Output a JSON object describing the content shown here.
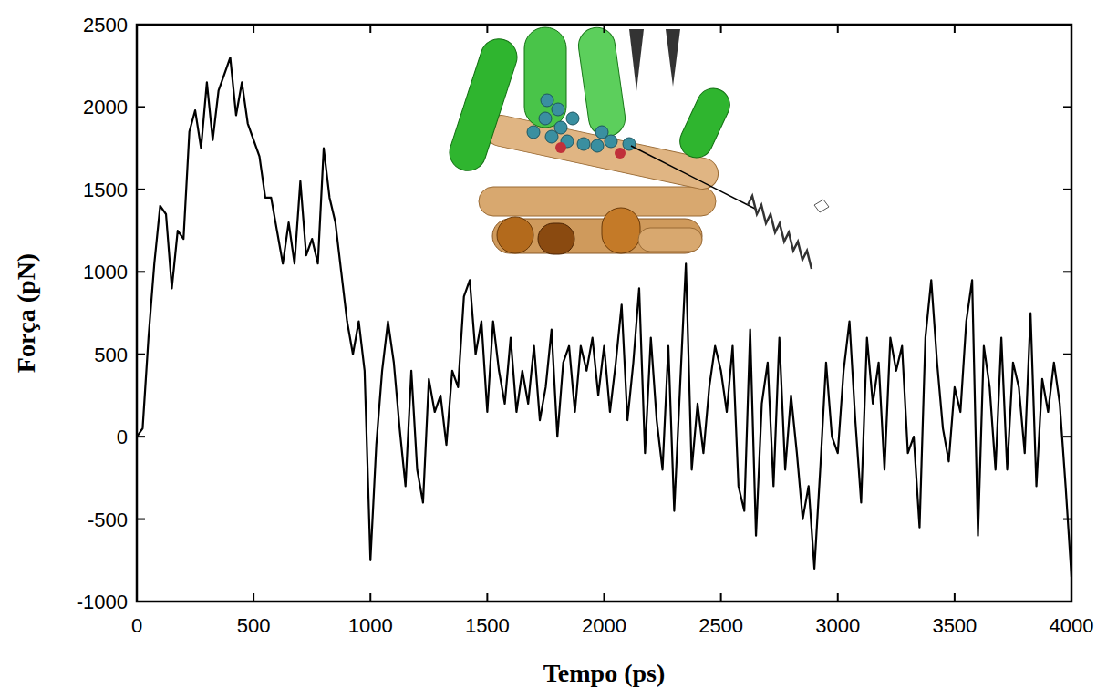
{
  "chart_data": {
    "type": "line",
    "x_label": "Tempo (ps)",
    "y_label": "Força (pN)",
    "color": "#000000",
    "xlim": [
      0,
      4000
    ],
    "ylim": [
      -1000,
      2500
    ],
    "xticks": [
      0,
      500,
      1000,
      1500,
      2000,
      2500,
      3000,
      3500,
      4000
    ],
    "yticks": [
      -1000,
      -500,
      0,
      500,
      1000,
      1500,
      2000,
      2500
    ],
    "grid": false,
    "x": [
      0,
      25,
      50,
      75,
      100,
      125,
      150,
      175,
      200,
      225,
      250,
      275,
      300,
      325,
      350,
      375,
      400,
      425,
      450,
      475,
      500,
      525,
      550,
      575,
      600,
      625,
      650,
      675,
      700,
      725,
      750,
      775,
      800,
      825,
      850,
      875,
      900,
      925,
      950,
      975,
      1000,
      1025,
      1050,
      1075,
      1100,
      1125,
      1150,
      1175,
      1200,
      1225,
      1250,
      1275,
      1300,
      1325,
      1350,
      1375,
      1400,
      1425,
      1450,
      1475,
      1500,
      1525,
      1550,
      1575,
      1600,
      1625,
      1650,
      1675,
      1700,
      1725,
      1750,
      1775,
      1800,
      1825,
      1850,
      1875,
      1900,
      1925,
      1950,
      1975,
      2000,
      2025,
      2050,
      2075,
      2100,
      2125,
      2150,
      2175,
      2200,
      2225,
      2250,
      2275,
      2300,
      2325,
      2350,
      2375,
      2400,
      2425,
      2450,
      2475,
      2500,
      2525,
      2550,
      2575,
      2600,
      2625,
      2650,
      2675,
      2700,
      2725,
      2750,
      2775,
      2800,
      2825,
      2850,
      2875,
      2900,
      2925,
      2950,
      2975,
      3000,
      3025,
      3050,
      3075,
      3100,
      3125,
      3150,
      3175,
      3200,
      3225,
      3250,
      3275,
      3300,
      3325,
      3350,
      3375,
      3400,
      3425,
      3450,
      3475,
      3500,
      3525,
      3550,
      3575,
      3600,
      3625,
      3650,
      3675,
      3700,
      3725,
      3750,
      3775,
      3800,
      3825,
      3850,
      3875,
      3900,
      3925,
      3950,
      3975,
      4000
    ],
    "values": [
      0,
      50,
      600,
      1050,
      1400,
      1350,
      900,
      1250,
      1200,
      1850,
      1980,
      1750,
      2150,
      1800,
      2100,
      2200,
      2300,
      1950,
      2150,
      1900,
      1800,
      1700,
      1450,
      1450,
      1250,
      1050,
      1300,
      1050,
      1550,
      1100,
      1200,
      1050,
      1750,
      1450,
      1300,
      1000,
      700,
      500,
      700,
      400,
      -750,
      -50,
      400,
      700,
      450,
      50,
      -300,
      400,
      -200,
      -400,
      350,
      150,
      250,
      -50,
      400,
      300,
      850,
      950,
      500,
      700,
      150,
      700,
      400,
      200,
      600,
      150,
      400,
      200,
      550,
      100,
      300,
      650,
      0,
      450,
      550,
      150,
      550,
      400,
      600,
      250,
      550,
      150,
      450,
      800,
      100,
      450,
      900,
      -100,
      600,
      100,
      -200,
      550,
      -450,
      300,
      1050,
      -200,
      200,
      -100,
      300,
      550,
      400,
      150,
      550,
      -300,
      -450,
      650,
      -600,
      200,
      450,
      -300,
      600,
      -200,
      250,
      -100,
      -500,
      -300,
      -800,
      -200,
      450,
      0,
      -100,
      400,
      700,
      100,
      -400,
      600,
      200,
      450,
      -200,
      600,
      400,
      550,
      -100,
      0,
      -550,
      600,
      950,
      450,
      50,
      -150,
      300,
      150,
      700,
      950,
      -600,
      550,
      300,
      -200,
      600,
      -200,
      450,
      300,
      -100,
      750,
      -300,
      350,
      150,
      450,
      200,
      -300,
      -850
    ]
  }
}
